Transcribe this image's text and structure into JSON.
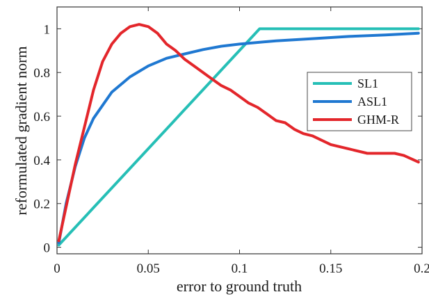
{
  "chart_data": {
    "type": "line",
    "title": "",
    "xlabel": "error to ground truth",
    "ylabel": "reformulated gradient norm",
    "xlim": [
      0,
      0.2
    ],
    "ylim": [
      -0.03,
      1.1
    ],
    "x_ticks": [
      0,
      0.05,
      0.1,
      0.15,
      0.2
    ],
    "x_tick_labels": [
      "0",
      "0.05",
      "0.1",
      "0.15",
      "0.2"
    ],
    "y_ticks": [
      0,
      0.2,
      0.4,
      0.6,
      0.8,
      1
    ],
    "y_tick_labels": [
      "0",
      "0.2",
      "0.4",
      "0.6",
      "0.8",
      "1"
    ],
    "grid": false,
    "legend_position": "right",
    "series": [
      {
        "name": "SL1",
        "color": "#26bfb6",
        "x": [
          0.001,
          0.111,
          0.198
        ],
        "y": [
          0.01,
          1.0,
          1.0
        ]
      },
      {
        "name": "ASL1",
        "color": "#1f78d1",
        "x": [
          0.001,
          0.005,
          0.01,
          0.015,
          0.02,
          0.03,
          0.04,
          0.05,
          0.06,
          0.07,
          0.08,
          0.09,
          0.1,
          0.12,
          0.14,
          0.16,
          0.18,
          0.198
        ],
        "y": [
          0.02,
          0.2,
          0.37,
          0.5,
          0.59,
          0.71,
          0.78,
          0.83,
          0.865,
          0.885,
          0.905,
          0.92,
          0.93,
          0.945,
          0.955,
          0.965,
          0.972,
          0.98
        ]
      },
      {
        "name": "GHM-R",
        "color": "#e3262b",
        "x": [
          0.001,
          0.01,
          0.02,
          0.025,
          0.03,
          0.035,
          0.04,
          0.045,
          0.05,
          0.055,
          0.06,
          0.065,
          0.07,
          0.075,
          0.08,
          0.085,
          0.09,
          0.095,
          0.1,
          0.105,
          0.11,
          0.115,
          0.12,
          0.125,
          0.13,
          0.135,
          0.14,
          0.15,
          0.16,
          0.17,
          0.175,
          0.18,
          0.185,
          0.19,
          0.198
        ],
        "y": [
          0.03,
          0.38,
          0.72,
          0.85,
          0.93,
          0.98,
          1.01,
          1.02,
          1.01,
          0.98,
          0.93,
          0.9,
          0.86,
          0.83,
          0.8,
          0.77,
          0.74,
          0.72,
          0.69,
          0.66,
          0.64,
          0.61,
          0.58,
          0.57,
          0.54,
          0.52,
          0.51,
          0.47,
          0.45,
          0.43,
          0.43,
          0.43,
          0.43,
          0.42,
          0.39
        ]
      }
    ]
  }
}
